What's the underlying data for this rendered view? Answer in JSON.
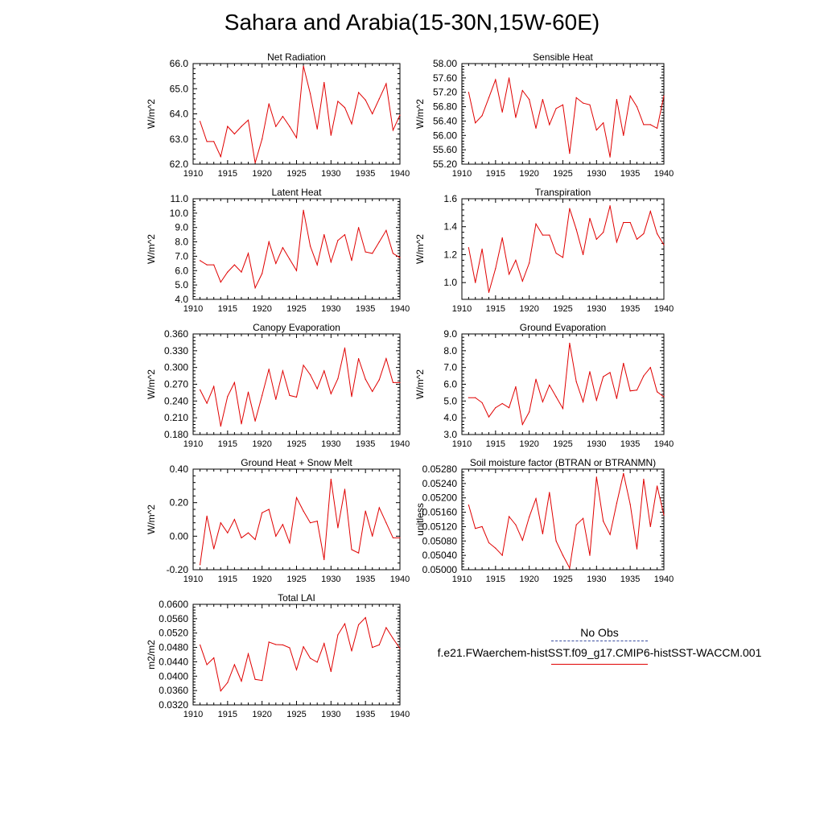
{
  "page_title": "Sahara and Arabia(15-30N,15W-60E)",
  "legend": {
    "obs_label": "No Obs",
    "run_label": "f.e21.FWaerchem-histSST.f09_g17.CMIP6-histSST-WACCM.001",
    "run_color": "#e00000",
    "obs_color": "#3a4da0"
  },
  "chart_data": [
    {
      "type": "line",
      "title": "Net Radiation",
      "ylabel": "W/m^2",
      "x": [
        1911,
        1912,
        1913,
        1914,
        1915,
        1916,
        1917,
        1918,
        1919,
        1920,
        1921,
        1922,
        1923,
        1924,
        1925,
        1926,
        1927,
        1928,
        1929,
        1930,
        1931,
        1932,
        1933,
        1934,
        1935,
        1936,
        1937,
        1938,
        1939,
        1940
      ],
      "values": [
        63.7,
        62.9,
        62.9,
        62.3,
        63.5,
        63.2,
        63.5,
        63.75,
        62.05,
        63.0,
        64.4,
        63.5,
        63.9,
        63.5,
        63.05,
        65.9,
        64.8,
        63.4,
        65.25,
        63.15,
        64.5,
        64.25,
        63.6,
        64.85,
        64.55,
        64.0,
        64.6,
        65.2,
        63.35,
        63.95
      ],
      "xlim": [
        1910,
        1940
      ],
      "ylim": [
        62.0,
        66.0
      ],
      "yticks": [
        "62.0",
        "63.0",
        "64.0",
        "65.0",
        "66.0"
      ],
      "xticks": [
        "1910",
        "1915",
        "1920",
        "1925",
        "1930",
        "1935",
        "1940"
      ],
      "color": "#e00000"
    },
    {
      "type": "line",
      "title": "Sensible Heat",
      "ylabel": "W/m^2",
      "x": [
        1911,
        1912,
        1913,
        1914,
        1915,
        1916,
        1917,
        1918,
        1919,
        1920,
        1921,
        1922,
        1923,
        1924,
        1925,
        1926,
        1927,
        1928,
        1929,
        1930,
        1931,
        1932,
        1933,
        1934,
        1935,
        1936,
        1937,
        1938,
        1939,
        1940
      ],
      "values": [
        57.2,
        56.35,
        56.55,
        57.05,
        57.55,
        56.65,
        57.6,
        56.5,
        57.25,
        57.0,
        56.2,
        57.0,
        56.3,
        56.75,
        56.85,
        55.5,
        57.05,
        56.9,
        56.85,
        56.15,
        56.35,
        55.4,
        57.0,
        56.0,
        57.1,
        56.8,
        56.3,
        56.3,
        56.2,
        57.1
      ],
      "xlim": [
        1910,
        1940
      ],
      "ylim": [
        55.2,
        58.0
      ],
      "yticks": [
        "55.20",
        "55.60",
        "56.00",
        "56.40",
        "56.80",
        "57.20",
        "57.60",
        "58.00"
      ],
      "xticks": [
        "1910",
        "1915",
        "1920",
        "1925",
        "1930",
        "1935",
        "1940"
      ],
      "color": "#e00000"
    },
    {
      "type": "line",
      "title": "Latent Heat",
      "ylabel": "W/m^2",
      "x": [
        1911,
        1912,
        1913,
        1914,
        1915,
        1916,
        1917,
        1918,
        1919,
        1920,
        1921,
        1922,
        1923,
        1924,
        1925,
        1926,
        1927,
        1928,
        1929,
        1930,
        1931,
        1932,
        1933,
        1934,
        1935,
        1936,
        1937,
        1938,
        1939,
        1940
      ],
      "values": [
        6.7,
        6.4,
        6.4,
        5.2,
        5.9,
        6.4,
        5.9,
        7.2,
        4.8,
        5.8,
        8.0,
        6.5,
        7.6,
        6.8,
        6.0,
        10.2,
        7.7,
        6.4,
        8.5,
        6.6,
        8.1,
        8.5,
        6.7,
        9.0,
        7.3,
        7.2,
        8.0,
        8.8,
        7.2,
        6.9
      ],
      "xlim": [
        1910,
        1940
      ],
      "ylim": [
        4.0,
        11.0
      ],
      "yticks": [
        "4.0",
        "5.0",
        "6.0",
        "7.0",
        "8.0",
        "9.0",
        "10.0",
        "11.0"
      ],
      "xticks": [
        "1910",
        "1915",
        "1920",
        "1925",
        "1930",
        "1935",
        "1940"
      ],
      "color": "#e00000"
    },
    {
      "type": "line",
      "title": "Transpiration",
      "ylabel": "W/m^2",
      "x": [
        1911,
        1912,
        1913,
        1914,
        1915,
        1916,
        1917,
        1918,
        1919,
        1920,
        1921,
        1922,
        1923,
        1924,
        1925,
        1926,
        1927,
        1928,
        1929,
        1930,
        1931,
        1932,
        1933,
        1934,
        1935,
        1936,
        1937,
        1938,
        1939,
        1940
      ],
      "values": [
        1.25,
        1.0,
        1.24,
        0.93,
        1.1,
        1.32,
        1.06,
        1.16,
        1.01,
        1.14,
        1.42,
        1.34,
        1.34,
        1.21,
        1.18,
        1.53,
        1.38,
        1.2,
        1.46,
        1.31,
        1.36,
        1.55,
        1.29,
        1.43,
        1.43,
        1.31,
        1.35,
        1.51,
        1.35,
        1.27
      ],
      "xlim": [
        1910,
        1940
      ],
      "ylim": [
        0.88,
        1.6
      ],
      "yticks": [
        "1.0",
        "1.2",
        "1.4",
        "1.6"
      ],
      "ytick_values": [
        1.0,
        1.2,
        1.4,
        1.6
      ],
      "xticks": [
        "1910",
        "1915",
        "1920",
        "1925",
        "1930",
        "1935",
        "1940"
      ],
      "color": "#e00000"
    },
    {
      "type": "line",
      "title": "Canopy Evaporation",
      "ylabel": "W/m^2",
      "x": [
        1911,
        1912,
        1913,
        1914,
        1915,
        1916,
        1917,
        1918,
        1919,
        1920,
        1921,
        1922,
        1923,
        1924,
        1925,
        1926,
        1927,
        1928,
        1929,
        1930,
        1931,
        1932,
        1933,
        1934,
        1935,
        1936,
        1937,
        1938,
        1939,
        1940
      ],
      "values": [
        0.26,
        0.236,
        0.266,
        0.195,
        0.248,
        0.273,
        0.199,
        0.256,
        0.204,
        0.25,
        0.297,
        0.243,
        0.294,
        0.25,
        0.247,
        0.304,
        0.287,
        0.262,
        0.294,
        0.253,
        0.28,
        0.335,
        0.248,
        0.316,
        0.279,
        0.257,
        0.278,
        0.316,
        0.273,
        0.273
      ],
      "xlim": [
        1910,
        1940
      ],
      "ylim": [
        0.18,
        0.36
      ],
      "yticks": [
        "0.180",
        "0.210",
        "0.240",
        "0.270",
        "0.300",
        "0.330",
        "0.360"
      ],
      "xticks": [
        "1910",
        "1915",
        "1920",
        "1925",
        "1930",
        "1935",
        "1940"
      ],
      "color": "#e00000"
    },
    {
      "type": "line",
      "title": "Ground Evaporation",
      "ylabel": "W/m^2",
      "x": [
        1911,
        1912,
        1913,
        1914,
        1915,
        1916,
        1917,
        1918,
        1919,
        1920,
        1921,
        1922,
        1923,
        1924,
        1925,
        1926,
        1927,
        1928,
        1929,
        1930,
        1931,
        1932,
        1933,
        1934,
        1935,
        1936,
        1937,
        1938,
        1939,
        1940
      ],
      "values": [
        5.2,
        5.2,
        4.9,
        4.05,
        4.6,
        4.85,
        4.6,
        5.85,
        3.6,
        4.35,
        6.3,
        4.95,
        5.95,
        5.25,
        4.55,
        8.45,
        6.15,
        4.95,
        6.75,
        5.05,
        6.45,
        6.7,
        5.15,
        7.25,
        5.6,
        5.65,
        6.5,
        7.0,
        5.55,
        5.25
      ],
      "xlim": [
        1910,
        1940
      ],
      "ylim": [
        3.0,
        9.0
      ],
      "yticks": [
        "3.0",
        "4.0",
        "5.0",
        "6.0",
        "7.0",
        "8.0",
        "9.0"
      ],
      "xticks": [
        "1910",
        "1915",
        "1920",
        "1925",
        "1930",
        "1935",
        "1940"
      ],
      "color": "#e00000"
    },
    {
      "type": "line",
      "title": "Ground Heat + Snow Melt",
      "ylabel": "W/m^2",
      "x": [
        1911,
        1912,
        1913,
        1914,
        1915,
        1916,
        1917,
        1918,
        1919,
        1920,
        1921,
        1922,
        1923,
        1924,
        1925,
        1926,
        1927,
        1928,
        1929,
        1930,
        1931,
        1932,
        1933,
        1934,
        1935,
        1936,
        1937,
        1938,
        1939,
        1940
      ],
      "values": [
        -0.17,
        0.12,
        -0.075,
        0.08,
        0.02,
        0.1,
        -0.01,
        0.02,
        -0.02,
        0.14,
        0.16,
        0.0,
        0.07,
        -0.04,
        0.23,
        0.15,
        0.08,
        0.09,
        -0.14,
        0.34,
        0.05,
        0.28,
        -0.08,
        -0.1,
        0.15,
        0.0,
        0.17,
        0.08,
        -0.01,
        -0.01
      ],
      "xlim": [
        1910,
        1940
      ],
      "ylim": [
        -0.2,
        0.4
      ],
      "yticks": [
        "-0.20",
        "0.00",
        "0.20",
        "0.40"
      ],
      "xticks": [
        "1910",
        "1915",
        "1920",
        "1925",
        "1930",
        "1935",
        "1940"
      ],
      "color": "#e00000"
    },
    {
      "type": "line",
      "title": "Soil moisture factor (BTRAN or BTRANMN)",
      "ylabel": "unitless",
      "x": [
        1911,
        1912,
        1913,
        1914,
        1915,
        1916,
        1917,
        1918,
        1919,
        1920,
        1921,
        1922,
        1923,
        1924,
        1925,
        1926,
        1927,
        1928,
        1929,
        1930,
        1931,
        1932,
        1933,
        1934,
        1935,
        1936,
        1937,
        1938,
        1939,
        1940
      ],
      "values": [
        0.0518,
        0.05115,
        0.0512,
        0.05075,
        0.0506,
        0.0504,
        0.05148,
        0.05125,
        0.05082,
        0.05147,
        0.05198,
        0.051,
        0.05215,
        0.0508,
        0.0504,
        0.05005,
        0.05125,
        0.05143,
        0.0504,
        0.05258,
        0.05135,
        0.05098,
        0.05185,
        0.05268,
        0.05182,
        0.05058,
        0.05252,
        0.0512,
        0.05233,
        0.05152
      ],
      "xlim": [
        1910,
        1940
      ],
      "ylim": [
        0.05,
        0.0528
      ],
      "yticks": [
        "0.05000",
        "0.05040",
        "0.05080",
        "0.05120",
        "0.05160",
        "0.05200",
        "0.05240",
        "0.05280"
      ],
      "xticks": [
        "1910",
        "1915",
        "1920",
        "1925",
        "1930",
        "1935",
        "1940"
      ],
      "color": "#e00000"
    },
    {
      "type": "line",
      "title": "Total LAI",
      "ylabel": "m2/m2",
      "x": [
        1911,
        1912,
        1913,
        1914,
        1915,
        1916,
        1917,
        1918,
        1919,
        1920,
        1921,
        1922,
        1923,
        1924,
        1925,
        1926,
        1927,
        1928,
        1929,
        1930,
        1931,
        1932,
        1933,
        1934,
        1935,
        1936,
        1937,
        1938,
        1939,
        1940
      ],
      "values": [
        0.0487,
        0.0432,
        0.0451,
        0.0359,
        0.0382,
        0.0432,
        0.0386,
        0.0462,
        0.0391,
        0.0388,
        0.0495,
        0.0488,
        0.0487,
        0.0479,
        0.0418,
        0.0482,
        0.045,
        0.0439,
        0.0491,
        0.0413,
        0.0515,
        0.0546,
        0.047,
        0.0543,
        0.0563,
        0.048,
        0.0487,
        0.0535,
        0.0505,
        0.0477
      ],
      "xlim": [
        1910,
        1940
      ],
      "ylim": [
        0.032,
        0.06
      ],
      "yticks": [
        "0.0320",
        "0.0360",
        "0.0400",
        "0.0440",
        "0.0480",
        "0.0520",
        "0.0560",
        "0.0600"
      ],
      "xticks": [
        "1910",
        "1915",
        "1920",
        "1925",
        "1930",
        "1935",
        "1940"
      ],
      "color": "#e00000"
    }
  ]
}
